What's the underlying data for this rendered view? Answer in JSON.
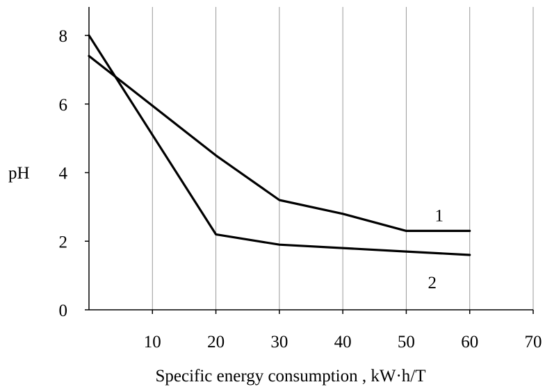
{
  "chart_data": {
    "type": "line",
    "xlabel": "Specific energy consumption , kW·h/T",
    "ylabel": "pH",
    "xlim": [
      0,
      70
    ],
    "ylim": [
      0,
      8
    ],
    "xticks": [
      10,
      20,
      30,
      40,
      50,
      60,
      70
    ],
    "yticks": [
      0,
      2,
      4,
      6,
      8
    ],
    "xtick_labels": [
      "10",
      "20",
      "30",
      "40",
      "50",
      "60",
      "70"
    ],
    "ytick_labels": [
      "0",
      "2",
      "4",
      "6",
      "8"
    ],
    "grid": "vertical",
    "series": [
      {
        "name": "1",
        "x": [
          0,
          20,
          30,
          40,
          50,
          60
        ],
        "y": [
          7.4,
          4.5,
          3.2,
          2.8,
          2.3,
          2.3
        ]
      },
      {
        "name": "2",
        "x": [
          0,
          20,
          30,
          40,
          50,
          60
        ],
        "y": [
          8.0,
          2.2,
          1.9,
          1.8,
          1.7,
          1.6
        ]
      }
    ],
    "colors": {
      "series": "#000000",
      "grid": "#999999",
      "axis": "#000000"
    }
  }
}
